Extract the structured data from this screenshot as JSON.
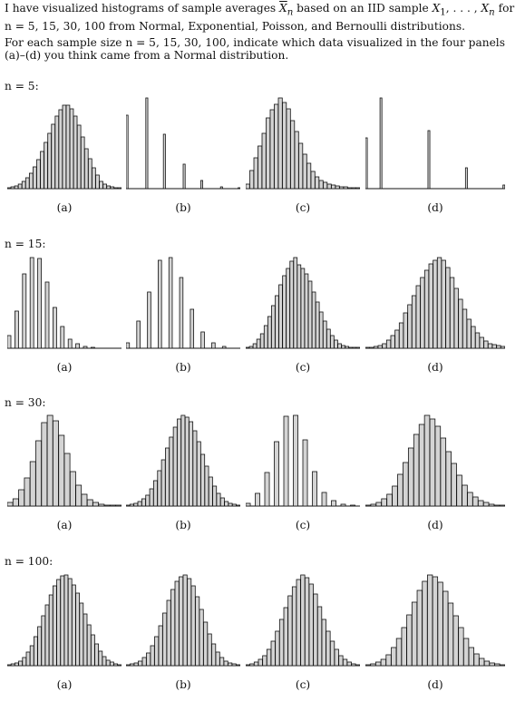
{
  "intro": {
    "line1_prefix": "I have visualized histograms of sample averages ",
    "xbar": "X",
    "xbar_sub": "n",
    "line1_mid": " based on an IID sample ",
    "sample": "X",
    "sample_sub1": "1",
    "sample_mid": ", . . . , ",
    "sample_sub2": "n",
    "line1_suffix": " for",
    "line2": "n = 5, 15, 30, 100 from Normal, Exponential, Poisson, and Bernoulli distributions.",
    "para2": "For each sample size n = 5, 15, 30, 100, indicate which data visualized in the four panels (a)–(d) you think came from a Normal distribution."
  },
  "chart_data": [
    {
      "type": "bar",
      "row_label": "n = 5:",
      "panel": "(a)",
      "values": [
        0.01,
        0.02,
        0.03,
        0.05,
        0.08,
        0.12,
        0.17,
        0.24,
        0.32,
        0.41,
        0.51,
        0.61,
        0.71,
        0.8,
        0.87,
        0.92,
        0.92,
        0.88,
        0.8,
        0.7,
        0.57,
        0.44,
        0.33,
        0.23,
        0.15,
        0.08,
        0.05,
        0.03,
        0.02,
        0.01,
        0.01
      ]
    },
    {
      "type": "bar",
      "panel": "(b)",
      "values": [
        0.81,
        0,
        0,
        0,
        0,
        0,
        0,
        0,
        0,
        1.0,
        0,
        0,
        0,
        0,
        0,
        0,
        0,
        0.6,
        0,
        0,
        0,
        0,
        0,
        0,
        0,
        0,
        0.27,
        0,
        0,
        0,
        0,
        0,
        0,
        0,
        0.09,
        0,
        0,
        0,
        0,
        0,
        0,
        0,
        0,
        0.02,
        0,
        0,
        0,
        0,
        0,
        0,
        0,
        0.01
      ]
    },
    {
      "type": "bar",
      "panel": "(c)",
      "values": [
        0.05,
        0.2,
        0.34,
        0.47,
        0.61,
        0.78,
        0.87,
        0.93,
        1.0,
        0.95,
        0.88,
        0.75,
        0.63,
        0.5,
        0.38,
        0.28,
        0.19,
        0.13,
        0.09,
        0.07,
        0.05,
        0.04,
        0.03,
        0.02,
        0.02,
        0.01,
        0.01,
        0.01
      ]
    },
    {
      "type": "bar",
      "panel": "(d)",
      "values": [
        0.56,
        0,
        0,
        0,
        0,
        0,
        0,
        1.0,
        0,
        0,
        0,
        0,
        0,
        0,
        0,
        0,
        0,
        0,
        0,
        0,
        0,
        0,
        0,
        0,
        0,
        0,
        0,
        0,
        0,
        0,
        0.64,
        0,
        0,
        0,
        0,
        0,
        0,
        0,
        0,
        0,
        0,
        0,
        0,
        0,
        0,
        0,
        0,
        0,
        0.23,
        0,
        0,
        0,
        0,
        0,
        0,
        0,
        0,
        0,
        0,
        0,
        0,
        0,
        0,
        0,
        0,
        0,
        0.04
      ]
    },
    {
      "type": "bar",
      "row_label": "n = 15:",
      "panel": "(a)",
      "values": [
        0.14,
        0,
        0.41,
        0,
        0.82,
        0,
        1.0,
        0,
        0.99,
        0,
        0.73,
        0,
        0.45,
        0,
        0.24,
        0,
        0.1,
        0,
        0.05,
        0,
        0.02,
        0,
        0.01,
        0,
        0,
        0,
        0,
        0,
        0,
        0
      ]
    },
    {
      "type": "bar",
      "panel": "(b)",
      "values": [
        0.06,
        0,
        0,
        0.3,
        0,
        0,
        0.62,
        0,
        0,
        0.97,
        0,
        0,
        1.0,
        0,
        0,
        0.78,
        0,
        0,
        0.43,
        0,
        0,
        0.18,
        0,
        0,
        0.06,
        0,
        0,
        0.02,
        0,
        0,
        0,
        0
      ]
    },
    {
      "type": "bar",
      "panel": "(c)",
      "values": [
        0.01,
        0.02,
        0.05,
        0.1,
        0.16,
        0.25,
        0.35,
        0.47,
        0.58,
        0.7,
        0.8,
        0.88,
        0.96,
        1.0,
        0.92,
        0.88,
        0.82,
        0.74,
        0.62,
        0.51,
        0.4,
        0.3,
        0.21,
        0.14,
        0.09,
        0.05,
        0.03,
        0.02,
        0.01,
        0.01,
        0.01
      ]
    },
    {
      "type": "bar",
      "panel": "(d)",
      "values": [
        0.01,
        0.01,
        0.02,
        0.03,
        0.05,
        0.09,
        0.14,
        0.2,
        0.28,
        0.39,
        0.48,
        0.58,
        0.69,
        0.78,
        0.86,
        0.93,
        0.97,
        1.0,
        0.97,
        0.89,
        0.78,
        0.66,
        0.54,
        0.43,
        0.32,
        0.24,
        0.17,
        0.12,
        0.08,
        0.05,
        0.04,
        0.03,
        0.02
      ]
    },
    {
      "type": "bar",
      "row_label": "n = 30:",
      "panel": "(a)",
      "values": [
        0.04,
        0.08,
        0.18,
        0.31,
        0.49,
        0.72,
        0.92,
        1.0,
        0.94,
        0.78,
        0.58,
        0.38,
        0.23,
        0.13,
        0.07,
        0.04,
        0.02,
        0.01,
        0.01,
        0.01
      ]
    },
    {
      "type": "bar",
      "panel": "(b)",
      "values": [
        0.01,
        0.02,
        0.03,
        0.05,
        0.08,
        0.12,
        0.19,
        0.28,
        0.39,
        0.51,
        0.64,
        0.76,
        0.87,
        0.96,
        1.0,
        0.98,
        0.93,
        0.83,
        0.71,
        0.57,
        0.44,
        0.32,
        0.22,
        0.14,
        0.09,
        0.05,
        0.03,
        0.02,
        0.01
      ]
    },
    {
      "type": "bar",
      "panel": "(c)",
      "values": [
        0.03,
        0,
        0.14,
        0,
        0.37,
        0,
        0.71,
        0,
        0.99,
        0,
        1.0,
        0,
        0.73,
        0,
        0.38,
        0,
        0.15,
        0,
        0.06,
        0,
        0.02,
        0,
        0.01,
        0
      ]
    },
    {
      "type": "bar",
      "panel": "(d)",
      "values": [
        0.01,
        0.02,
        0.04,
        0.08,
        0.13,
        0.22,
        0.35,
        0.48,
        0.64,
        0.79,
        0.9,
        1.0,
        0.96,
        0.88,
        0.75,
        0.6,
        0.47,
        0.34,
        0.23,
        0.15,
        0.1,
        0.06,
        0.04,
        0.02,
        0.01,
        0.01
      ]
    },
    {
      "type": "bar",
      "row_label": "n = 100:",
      "panel": "(a)",
      "values": [
        0.01,
        0.02,
        0.03,
        0.05,
        0.09,
        0.15,
        0.22,
        0.32,
        0.43,
        0.55,
        0.67,
        0.78,
        0.88,
        0.95,
        0.99,
        1.0,
        0.96,
        0.89,
        0.8,
        0.69,
        0.57,
        0.45,
        0.34,
        0.24,
        0.16,
        0.1,
        0.06,
        0.04,
        0.02,
        0.01
      ]
    },
    {
      "type": "bar",
      "panel": "(b)",
      "values": [
        0.01,
        0.02,
        0.03,
        0.05,
        0.09,
        0.14,
        0.22,
        0.32,
        0.44,
        0.58,
        0.72,
        0.84,
        0.93,
        0.98,
        1.0,
        0.96,
        0.88,
        0.76,
        0.62,
        0.48,
        0.35,
        0.24,
        0.15,
        0.09,
        0.05,
        0.03,
        0.02,
        0.01
      ]
    },
    {
      "type": "bar",
      "panel": "(c)",
      "values": [
        0.01,
        0.02,
        0.04,
        0.07,
        0.11,
        0.18,
        0.27,
        0.38,
        0.51,
        0.64,
        0.77,
        0.87,
        0.95,
        1.0,
        0.97,
        0.9,
        0.79,
        0.65,
        0.51,
        0.38,
        0.27,
        0.18,
        0.11,
        0.07,
        0.04,
        0.02,
        0.01
      ]
    },
    {
      "type": "bar",
      "panel": "(d)",
      "values": [
        0.01,
        0.02,
        0.04,
        0.07,
        0.12,
        0.2,
        0.3,
        0.42,
        0.56,
        0.7,
        0.83,
        0.93,
        1.0,
        0.98,
        0.92,
        0.82,
        0.69,
        0.55,
        0.42,
        0.3,
        0.2,
        0.13,
        0.08,
        0.05,
        0.03,
        0.02,
        0.01
      ]
    }
  ]
}
